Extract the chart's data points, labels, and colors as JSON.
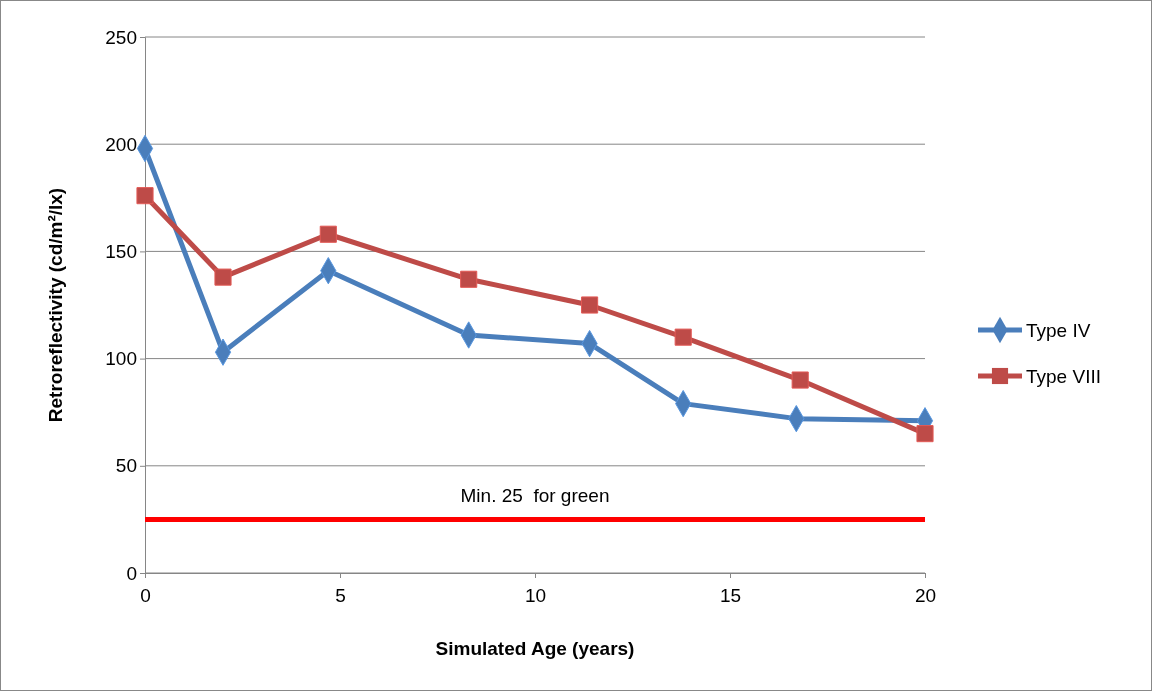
{
  "chart_data": {
    "type": "line",
    "xlabel": "Simulated Age (years)",
    "ylabel": "Retroreflectivity (cd/m²/lx)",
    "xlim": [
      0,
      20
    ],
    "xticks": [
      0,
      5,
      10,
      15,
      20
    ],
    "ylim": [
      0,
      250
    ],
    "yticks": [
      0,
      50,
      100,
      150,
      200,
      250
    ],
    "grid": "y",
    "legend": "right",
    "series": [
      {
        "name": "Type IV",
        "color": "#4a7ebb",
        "marker": "diamond",
        "x": [
          0,
          2,
          4.7,
          8.3,
          11.4,
          13.8,
          16.7,
          20
        ],
        "values": [
          198,
          103,
          141,
          111,
          107,
          79,
          72,
          71
        ]
      },
      {
        "name": "Type VIII",
        "color": "#be4b48",
        "marker": "square",
        "x": [
          0,
          2,
          4.7,
          8.3,
          11.4,
          13.8,
          16.8,
          20
        ],
        "values": [
          176,
          138,
          158,
          137,
          125,
          110,
          90,
          65
        ]
      }
    ],
    "ref_lines": [
      {
        "axis": "y",
        "value": 25,
        "label": "Min. 25  for green",
        "color": "#ff0000"
      }
    ]
  }
}
